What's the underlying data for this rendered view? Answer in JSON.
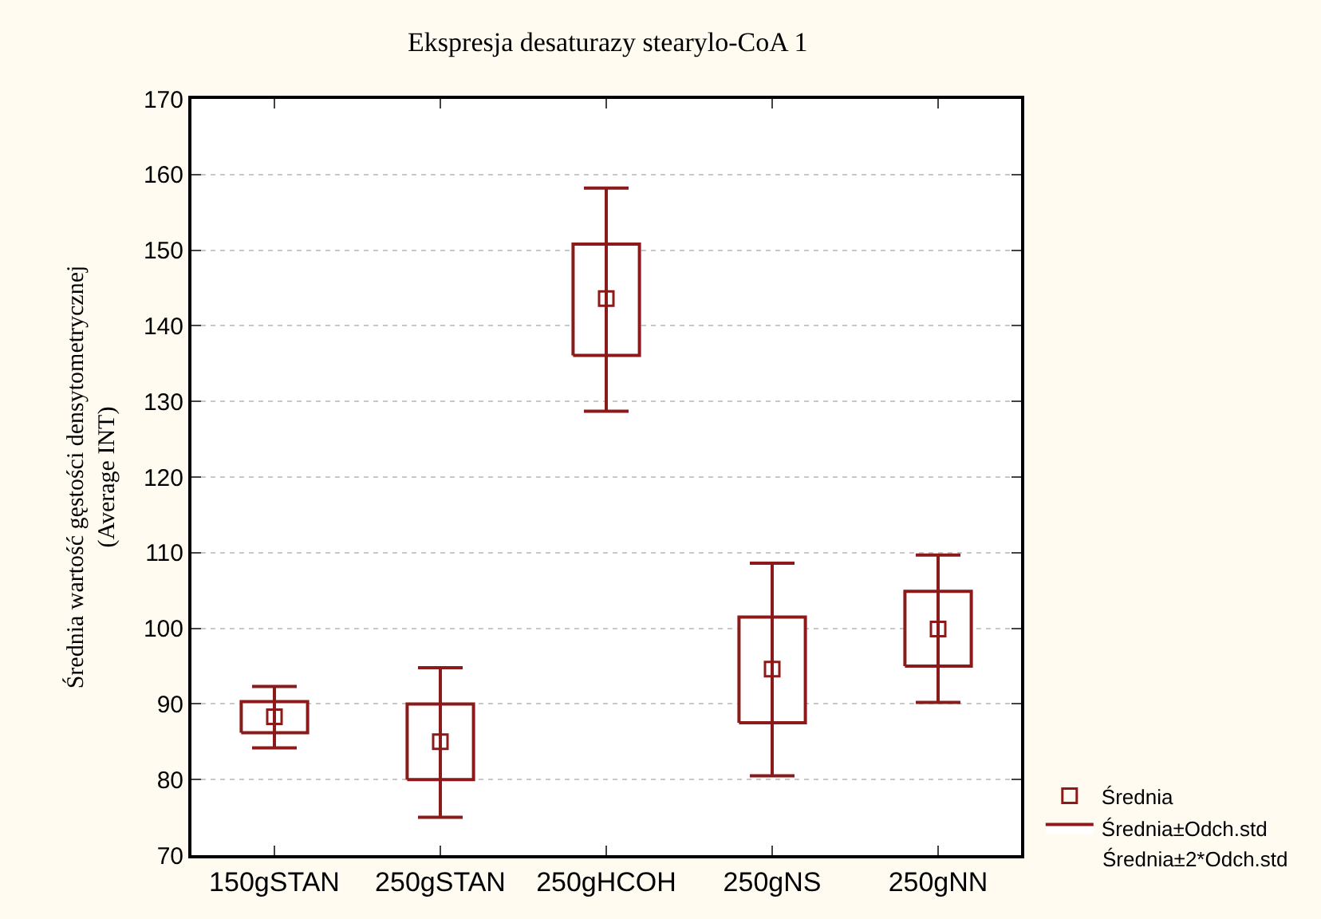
{
  "chart_data": {
    "type": "bar",
    "title": "Ekspresja desaturazy stearylo-CoA 1",
    "ylabel": "Średnia wartość gęstości densytometrycznej\n(Average INT)",
    "categories": [
      "150gSTAN",
      "250gSTAN",
      "250gHCOH",
      "250gNS",
      "250gNN"
    ],
    "ylim": [
      70,
      170
    ],
    "yticks": [
      70,
      80,
      90,
      100,
      110,
      120,
      130,
      140,
      150,
      160,
      170
    ],
    "grid": "y",
    "legend": "bottom right",
    "series": [
      {
        "name": "Średnia",
        "type": "scatter",
        "marker": "square",
        "color": "#8b1a1a",
        "values": [
          88.3,
          85.0,
          143.6,
          94.6,
          99.9
        ],
        "errors": [
          [
            84.2,
            92.3
          ],
          [
            75.0,
            94.8
          ],
          [
            128.7,
            158.2
          ],
          [
            80.5,
            108.6
          ],
          [
            90.2,
            109.7
          ]
        ]
      },
      {
        "name": "Średnia±Odch.std",
        "color": "#8b1a1a",
        "base": [
          86.2,
          80.0,
          136.1,
          87.5,
          95.0
        ],
        "values": [
          4.1,
          10.0,
          14.7,
          14.0,
          9.9
        ]
      }
    ],
    "annotations": [
      "Średnia±2*Odch.std"
    ]
  }
}
